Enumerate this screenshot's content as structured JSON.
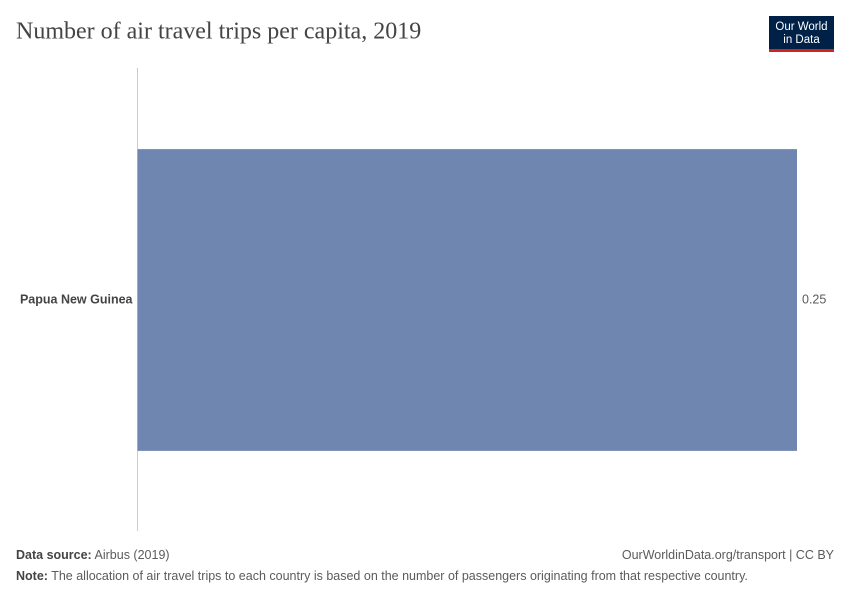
{
  "chart_data": {
    "type": "bar",
    "orientation": "horizontal",
    "title": "Number of air travel trips per capita, 2019",
    "categories": [
      "Papua New Guinea"
    ],
    "values": [
      0.25
    ],
    "color": "#6f87b0",
    "xlim": [
      0,
      0.25
    ]
  },
  "logo": {
    "lines": [
      "Our World",
      "in Data"
    ]
  },
  "footer": {
    "source_label": "Data source:",
    "source": "Airbus (2019)",
    "url": "OurWorldinData.org/transport | CC BY",
    "note_label": "Note:",
    "note": "The allocation of air travel trips to each country is based on the number of passengers originating from that respective country."
  }
}
